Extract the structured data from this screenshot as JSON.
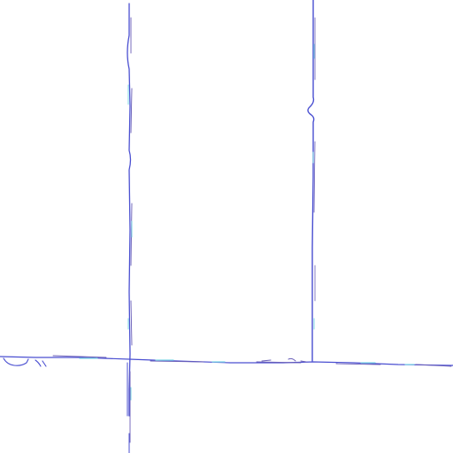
{
  "drawing": {
    "background_color": "#ffffff",
    "line_colors": {
      "primary": "#4a4fd1",
      "secondary": "#6a5fb8",
      "highlight": "#7fd8e6"
    },
    "line_count": 3
  }
}
